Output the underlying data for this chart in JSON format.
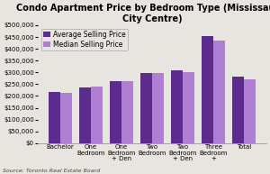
{
  "title": "Condo Apartment Price by Bedroom Type (Mississauga\nCity Centre)",
  "categories": [
    "Bachelor",
    "One\nBedroom",
    "One\nBedroom\n+ Den",
    "Two\nBedroom",
    "Two\nBedroom\n+ Den",
    "Three\nBedroom\n+",
    "Total"
  ],
  "avg_values": [
    218000,
    237000,
    262000,
    297000,
    308000,
    453000,
    283000
  ],
  "med_values": [
    215000,
    240000,
    263000,
    297000,
    302000,
    435000,
    272000
  ],
  "avg_color": "#5B2C8D",
  "med_color": "#B07FD4",
  "ylim": [
    0,
    500000
  ],
  "yticks": [
    0,
    50000,
    100000,
    150000,
    200000,
    250000,
    300000,
    350000,
    400000,
    450000,
    500000
  ],
  "legend_avg": "Average Selling Price",
  "legend_med": "Median Selling Price",
  "source": "Source: Toronto Real Estate Board",
  "bg_color": "#e8e4df",
  "plot_bg_color": "#e8e4df",
  "title_fontsize": 7.0,
  "tick_fontsize": 5.0,
  "legend_fontsize": 5.5,
  "source_fontsize": 4.5,
  "bar_width": 0.38
}
